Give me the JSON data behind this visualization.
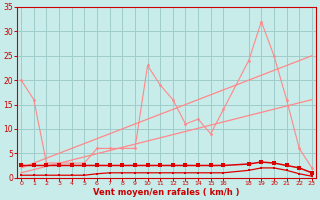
{
  "bg_color": "#c8ecea",
  "grid_color": "#a0cccc",
  "line_color_dark": "#dd0000",
  "line_color_light": "#ff8888",
  "line_color_medium": "#ee6666",
  "xlabel": "Vent moyen/en rafales ( km/h )",
  "xlabel_color": "#cc0000",
  "tick_color": "#cc0000",
  "xlim": [
    -0.3,
    23.3
  ],
  "ylim": [
    0,
    35
  ],
  "yticks": [
    0,
    5,
    10,
    15,
    20,
    25,
    30,
    35
  ],
  "xtick_vals": [
    0,
    1,
    2,
    3,
    4,
    5,
    6,
    7,
    8,
    9,
    10,
    11,
    12,
    13,
    14,
    15,
    16,
    18,
    19,
    20,
    21,
    22,
    23
  ],
  "xtick_labels": [
    "0",
    "1",
    "2",
    "3",
    "4",
    "5",
    "6",
    "7",
    "8",
    "9",
    "10",
    "11",
    "12",
    "13",
    "14",
    "15",
    "16",
    "18",
    "19",
    "20",
    "21",
    "22",
    "23"
  ],
  "jagged_x": [
    0,
    1,
    2,
    3,
    4,
    5,
    6,
    7,
    8,
    9,
    10,
    11,
    12,
    13,
    14,
    15,
    16,
    18,
    19,
    20,
    21,
    22,
    23
  ],
  "jagged_y": [
    20,
    16,
    3,
    3,
    3,
    3,
    6,
    6,
    6,
    6,
    23,
    19,
    16,
    11,
    12,
    9,
    14,
    24,
    32,
    25,
    16,
    6,
    2
  ],
  "trend1_x": [
    0,
    23
  ],
  "trend1_y": [
    2.0,
    25.0
  ],
  "trend2_x": [
    0,
    23
  ],
  "trend2_y": [
    1.0,
    16.0
  ],
  "dark1_x": [
    0,
    1,
    2,
    3,
    4,
    5,
    6,
    7,
    8,
    9,
    10,
    11,
    12,
    13,
    14,
    15,
    16,
    18,
    19,
    20,
    21,
    22,
    23
  ],
  "dark1_y": [
    2.5,
    2.5,
    2.5,
    2.5,
    2.5,
    2.5,
    2.5,
    2.5,
    2.5,
    2.5,
    2.5,
    2.5,
    2.5,
    2.5,
    2.5,
    2.5,
    2.5,
    2.8,
    3.2,
    3.0,
    2.5,
    2.0,
    1.0
  ],
  "dark2_x": [
    0,
    1,
    2,
    3,
    4,
    5,
    6,
    7,
    8,
    9,
    10,
    11,
    12,
    13,
    14,
    15,
    16,
    18,
    19,
    20,
    21,
    22,
    23
  ],
  "dark2_y": [
    0.5,
    0.5,
    0.5,
    0.5,
    0.5,
    0.5,
    0.8,
    1.0,
    1.0,
    1.0,
    1.0,
    1.0,
    1.0,
    1.0,
    1.0,
    1.0,
    1.0,
    1.5,
    2.0,
    2.0,
    1.5,
    0.8,
    0.3
  ]
}
